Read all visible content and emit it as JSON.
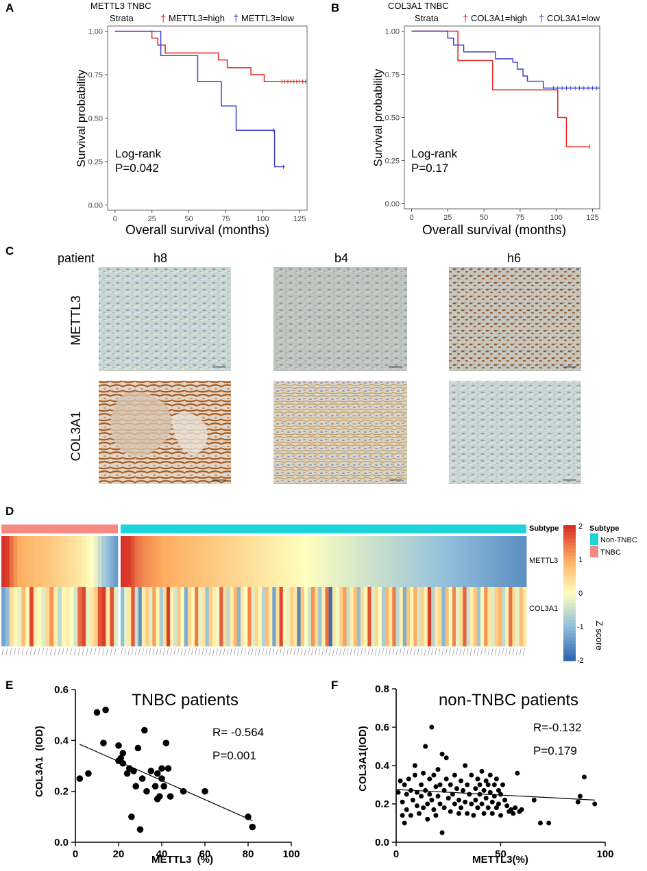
{
  "figure": {
    "panel_letters": {
      "a": "A",
      "b": "B",
      "c": "C",
      "d": "D",
      "e": "E",
      "f": "F"
    },
    "colors": {
      "red": "#e8221f",
      "blue": "#3b3fcf",
      "teal": "#1fd3da",
      "salmon": "#f48a82",
      "black": "#000000"
    }
  },
  "ihc": {
    "patient_label": "patient",
    "patients": [
      "h8",
      "b4",
      "h6"
    ],
    "rows": [
      "METTL3",
      "COL3A1"
    ]
  },
  "chart_data": [
    {
      "id": "A",
      "type": "line",
      "title": "METTL3 TNBC",
      "legend": {
        "title": "Strata",
        "entries": [
          "METTL3=high",
          "METTL3=low"
        ],
        "mark": "†"
      },
      "xlabel": "Overall survival (months)",
      "ylabel": "Survival probability",
      "xlim": [
        -5,
        130
      ],
      "ylim": [
        -0.03,
        1.03
      ],
      "xticks": [
        0,
        25,
        50,
        75,
        100,
        125
      ],
      "yticks": [
        "0.00",
        "0.25",
        "0.50",
        "0.75",
        "1.00"
      ],
      "annotation": [
        "Log-rank",
        "P=0.042"
      ],
      "series": [
        {
          "name": "METTL3=high",
          "color": "#e8221f",
          "steps": [
            [
              0,
              1.0
            ],
            [
              25,
              0.96
            ],
            [
              29,
              0.92
            ],
            [
              34,
              0.875
            ],
            [
              70,
              0.835
            ],
            [
              76,
              0.79
            ],
            [
              92,
              0.75
            ],
            [
              101,
              0.71
            ],
            [
              130,
              0.71
            ]
          ],
          "censors": [
            113,
            115,
            117,
            119,
            121,
            123,
            125,
            127,
            129
          ]
        },
        {
          "name": "METTL3=low",
          "color": "#3b3fcf",
          "steps": [
            [
              0,
              1.0
            ],
            [
              31,
              0.86
            ],
            [
              56,
              0.71
            ],
            [
              72,
              0.57
            ],
            [
              82,
              0.43
            ],
            [
              108,
              0.22
            ],
            [
              115,
              0.22
            ]
          ],
          "censors": [
            107,
            114
          ]
        }
      ]
    },
    {
      "id": "B",
      "type": "line",
      "title": "COL3A1 TNBC",
      "legend": {
        "title": "Strata",
        "entries": [
          "COL3A1=high",
          "COL3A1=low"
        ],
        "mark": "†"
      },
      "xlabel": "Overall survival (months)",
      "ylabel": "Survival probability",
      "xlim": [
        -5,
        130
      ],
      "ylim": [
        -0.03,
        1.03
      ],
      "xticks": [
        0,
        25,
        50,
        75,
        100,
        125
      ],
      "yticks": [
        "0.00",
        "0.25",
        "0.50",
        "0.75",
        "1.00"
      ],
      "annotation": [
        "Log-rank",
        "P=0.17"
      ],
      "series": [
        {
          "name": "COL3A1=high",
          "color": "#e8221f",
          "steps": [
            [
              0,
              1.0
            ],
            [
              27,
              1.0
            ],
            [
              32,
              0.83
            ],
            [
              56,
              0.66
            ],
            [
              101,
              0.5
            ],
            [
              107,
              0.33
            ],
            [
              123,
              0.33
            ]
          ],
          "censors": [
            123
          ]
        },
        {
          "name": "COL3A1=low",
          "color": "#3b3fcf",
          "steps": [
            [
              0,
              1.0
            ],
            [
              25,
              0.96
            ],
            [
              29,
              0.92
            ],
            [
              36,
              0.88
            ],
            [
              58,
              0.84
            ],
            [
              70,
              0.82
            ],
            [
              73,
              0.78
            ],
            [
              77,
              0.74
            ],
            [
              80,
              0.71
            ],
            [
              91,
              0.67
            ],
            [
              130,
              0.67
            ]
          ],
          "censors": [
            98,
            101,
            104,
            107,
            110,
            113,
            116,
            119,
            122,
            125,
            128
          ]
        }
      ]
    },
    {
      "id": "D",
      "type": "heatmap",
      "rows": [
        "METTL3",
        "COL3A1"
      ],
      "annotation_row": "Subtype",
      "legend": {
        "subtype_title": "Subtype",
        "subtype_entries": [
          "Non-TNBC",
          "TNBC"
        ],
        "scale_ticks": [
          "2",
          "1",
          "0",
          "-1",
          "-2"
        ],
        "scale_title": "Z score"
      },
      "groups": [
        {
          "name": "TNBC",
          "samples": 29,
          "mettl3": [
            2.0,
            1.9,
            1.5,
            1.2,
            1.0,
            0.95,
            0.9,
            0.85,
            0.82,
            0.8,
            0.75,
            0.7,
            0.65,
            0.6,
            0.55,
            0.5,
            0.45,
            0.4,
            0.35,
            0.3,
            0.2,
            0.1,
            0.0,
            -0.2,
            -0.5,
            -0.8,
            -1.0,
            -1.2,
            -1.4
          ],
          "col3a1": [
            -1.3,
            -1.0,
            0.4,
            0.1,
            -0.2,
            0.8,
            0.1,
            1.8,
            0.2,
            0.0,
            -0.3,
            0.5,
            1.2,
            0.2,
            -0.6,
            0.1,
            0.2,
            0.0,
            -0.4,
            1.5,
            1.8,
            -0.2,
            0.3,
            0.6,
            1.7,
            1.9,
            0.3,
            1.7,
            -0.3
          ]
        },
        {
          "name": "Non-TNBC",
          "samples": 115,
          "mettl3": [
            2.0,
            1.95,
            1.9,
            1.7,
            1.5,
            1.4,
            1.3,
            1.25,
            1.2,
            1.15,
            1.1,
            1.05,
            1.0,
            0.98,
            0.95,
            0.92,
            0.9,
            0.88,
            0.85,
            0.82,
            0.8,
            0.78,
            0.75,
            0.72,
            0.7,
            0.68,
            0.65,
            0.62,
            0.6,
            0.58,
            0.55,
            0.52,
            0.5,
            0.48,
            0.45,
            0.42,
            0.4,
            0.38,
            0.35,
            0.32,
            0.3,
            0.28,
            0.25,
            0.22,
            0.2,
            0.18,
            0.15,
            0.12,
            0.1,
            0.08,
            0.05,
            0.02,
            0.0,
            -0.02,
            -0.05,
            -0.08,
            -0.1,
            -0.12,
            -0.15,
            -0.18,
            -0.2,
            -0.22,
            -0.25,
            -0.28,
            -0.3,
            -0.32,
            -0.35,
            -0.38,
            -0.4,
            -0.42,
            -0.45,
            -0.48,
            -0.5,
            -0.52,
            -0.55,
            -0.58,
            -0.6,
            -0.62,
            -0.65,
            -0.68,
            -0.7,
            -0.72,
            -0.75,
            -0.78,
            -0.8,
            -0.82,
            -0.85,
            -0.88,
            -0.9,
            -0.92,
            -0.95,
            -0.98,
            -1.0,
            -1.02,
            -1.05,
            -1.08,
            -1.1,
            -1.12,
            -1.15,
            -1.18,
            -1.2,
            -1.22,
            -1.25,
            -1.28,
            -1.3,
            -1.32,
            -1.35,
            -1.38,
            -1.4,
            -1.42,
            -1.45,
            -1.48,
            -1.5,
            -1.52,
            -1.55
          ],
          "col3a1": [
            -1.0,
            -0.2,
            0.3,
            1.7,
            -0.5,
            -1.5,
            0.2,
            0.6,
            -0.3,
            1.1,
            0.1,
            -0.8,
            0.4,
            1.9,
            0.2,
            -0.4,
            0.7,
            0.0,
            -1.2,
            0.5,
            0.1,
            1.4,
            -0.2,
            0.3,
            -0.9,
            0.6,
            0.2,
            -0.1,
            1.6,
            0.4,
            -0.6,
            0.2,
            0.9,
            -1.1,
            0.3,
            0.0,
            1.3,
            -0.3,
            0.5,
            0.1,
            -0.7,
            0.8,
            0.2,
            -1.3,
            0.4,
            1.8,
            0.1,
            -0.2,
            0.6,
            0.3,
            -1.6,
            0.7,
            0.0,
            -0.4,
            1.2,
            0.5,
            -0.9,
            0.2,
            1.5,
            -1.9,
            0.3,
            -0.1,
            0.6,
            1.1,
            -0.5,
            0.2,
            0.8,
            -1.0,
            0.4,
            0.1,
            1.7,
            -0.3,
            0.5,
            0.0,
            -0.8,
            0.9,
            0.3,
            1.4,
            -0.6,
            0.2,
            -1.2,
            0.7,
            0.1,
            1.0,
            -0.4,
            0.6,
            0.2,
            1.9,
            -0.7,
            0.3,
            0.5,
            -1.1,
            0.8,
            0.0,
            1.3,
            -0.2,
            0.4,
            1.6,
            -0.5,
            0.2,
            0.7,
            -0.9,
            0.1,
            1.2,
            0.3,
            -0.3,
            0.6,
            0.9,
            -0.6,
            0.2,
            1.5,
            0.4,
            -0.2,
            0.8,
            0.3
          ]
        }
      ]
    },
    {
      "id": "E",
      "type": "scatter",
      "title": "TNBC patients",
      "xlabel": "METTL3  (%)",
      "ylabel": "COL3A1  (IOD)",
      "xlim": [
        0,
        100
      ],
      "ylim": [
        0,
        0.6
      ],
      "xticks": [
        "0",
        "20",
        "40",
        "60",
        "80",
        "100"
      ],
      "yticks": [
        "0.0",
        "0.2",
        "0.4",
        "0.6"
      ],
      "stats": [
        "R= -0.564",
        "P=0.001"
      ],
      "fit": [
        [
          2,
          0.385
        ],
        [
          82,
          0.085
        ]
      ],
      "points": [
        [
          2,
          0.25
        ],
        [
          6,
          0.27
        ],
        [
          10,
          0.51
        ],
        [
          13,
          0.39
        ],
        [
          14,
          0.52
        ],
        [
          20,
          0.38
        ],
        [
          20,
          0.32
        ],
        [
          21,
          0.33
        ],
        [
          22,
          0.31
        ],
        [
          22,
          0.35
        ],
        [
          24,
          0.27
        ],
        [
          25,
          0.29
        ],
        [
          26,
          0.1
        ],
        [
          27,
          0.28
        ],
        [
          28,
          0.22
        ],
        [
          29,
          0.37
        ],
        [
          30,
          0.05
        ],
        [
          31,
          0.25
        ],
        [
          32,
          0.44
        ],
        [
          33,
          0.2
        ],
        [
          35,
          0.28
        ],
        [
          37,
          0.22
        ],
        [
          38,
          0.17
        ],
        [
          38,
          0.27
        ],
        [
          39,
          0.18
        ],
        [
          40,
          0.29
        ],
        [
          40,
          0.25
        ],
        [
          41,
          0.22
        ],
        [
          42,
          0.39
        ],
        [
          43,
          0.29
        ],
        [
          44,
          0.18
        ],
        [
          50,
          0.2
        ],
        [
          60,
          0.2
        ],
        [
          80,
          0.1
        ],
        [
          82,
          0.06
        ]
      ]
    },
    {
      "id": "F",
      "type": "scatter",
      "title": "non-TNBC patients",
      "xlabel": "METTL3(%)",
      "ylabel": "COL3A1(IOD)",
      "xlim": [
        0,
        100
      ],
      "ylim": [
        0,
        0.8
      ],
      "xticks": [
        "0",
        "50",
        "100"
      ],
      "yticks": [
        "0.0",
        "0.2",
        "0.4",
        "0.6",
        "0.8"
      ],
      "stats": [
        "R=-0.132",
        "P=0.179"
      ],
      "fit": [
        [
          0,
          0.275
        ],
        [
          95,
          0.22
        ]
      ],
      "points": [
        [
          1,
          0.26
        ],
        [
          2,
          0.32
        ],
        [
          3,
          0.21
        ],
        [
          3,
          0.14
        ],
        [
          4,
          0.3
        ],
        [
          4,
          0.1
        ],
        [
          5,
          0.25
        ],
        [
          5,
          0.17
        ],
        [
          6,
          0.33
        ],
        [
          7,
          0.27
        ],
        [
          7,
          0.14
        ],
        [
          8,
          0.22
        ],
        [
          9,
          0.4
        ],
        [
          9,
          0.35
        ],
        [
          10,
          0.26
        ],
        [
          10,
          0.19
        ],
        [
          11,
          0.15
        ],
        [
          12,
          0.3
        ],
        [
          12,
          0.24
        ],
        [
          13,
          0.18
        ],
        [
          13,
          0.36
        ],
        [
          14,
          0.5
        ],
        [
          14,
          0.27
        ],
        [
          15,
          0.2
        ],
        [
          15,
          0.12
        ],
        [
          16,
          0.33
        ],
        [
          16,
          0.25
        ],
        [
          17,
          0.6
        ],
        [
          17,
          0.22
        ],
        [
          18,
          0.35
        ],
        [
          18,
          0.17
        ],
        [
          19,
          0.29
        ],
        [
          19,
          0.14
        ],
        [
          20,
          0.24
        ],
        [
          20,
          0.38
        ],
        [
          21,
          0.2
        ],
        [
          21,
          0.3
        ],
        [
          22,
          0.46
        ],
        [
          22,
          0.05
        ],
        [
          23,
          0.27
        ],
        [
          23,
          0.18
        ],
        [
          24,
          0.33
        ],
        [
          24,
          0.44
        ],
        [
          25,
          0.23
        ],
        [
          26,
          0.16
        ],
        [
          26,
          0.3
        ],
        [
          27,
          0.25
        ],
        [
          28,
          0.2
        ],
        [
          28,
          0.35
        ],
        [
          29,
          0.28
        ],
        [
          30,
          0.15
        ],
        [
          30,
          0.22
        ],
        [
          31,
          0.32
        ],
        [
          31,
          0.18
        ],
        [
          32,
          0.27
        ],
        [
          33,
          0.21
        ],
        [
          33,
          0.4
        ],
        [
          34,
          0.15
        ],
        [
          34,
          0.3
        ],
        [
          35,
          0.25
        ],
        [
          36,
          0.2
        ],
        [
          36,
          0.35
        ],
        [
          37,
          0.14
        ],
        [
          38,
          0.28
        ],
        [
          38,
          0.22
        ],
        [
          39,
          0.18
        ],
        [
          39,
          0.33
        ],
        [
          40,
          0.25
        ],
        [
          40,
          0.3
        ],
        [
          41,
          0.2
        ],
        [
          41,
          0.37
        ],
        [
          42,
          0.27
        ],
        [
          42,
          0.15
        ],
        [
          43,
          0.32
        ],
        [
          43,
          0.23
        ],
        [
          44,
          0.3
        ],
        [
          44,
          0.18
        ],
        [
          45,
          0.26
        ],
        [
          45,
          0.35
        ],
        [
          46,
          0.21
        ],
        [
          46,
          0.15
        ],
        [
          47,
          0.3
        ],
        [
          47,
          0.24
        ],
        [
          48,
          0.33
        ],
        [
          48,
          0.18
        ],
        [
          49,
          0.27
        ],
        [
          49,
          0.2
        ],
        [
          50,
          0.25
        ],
        [
          50,
          0.14
        ],
        [
          51,
          0.3
        ],
        [
          52,
          0.22
        ],
        [
          53,
          0.19
        ],
        [
          54,
          0.16
        ],
        [
          55,
          0.17
        ],
        [
          56,
          0.15
        ],
        [
          57,
          0.18
        ],
        [
          58,
          0.36
        ],
        [
          59,
          0.16
        ],
        [
          60,
          0.17
        ],
        [
          66,
          0.22
        ],
        [
          69,
          0.1
        ],
        [
          73,
          0.1
        ],
        [
          87,
          0.21
        ],
        [
          88,
          0.24
        ],
        [
          90,
          0.34
        ],
        [
          95,
          0.2
        ]
      ]
    }
  ]
}
